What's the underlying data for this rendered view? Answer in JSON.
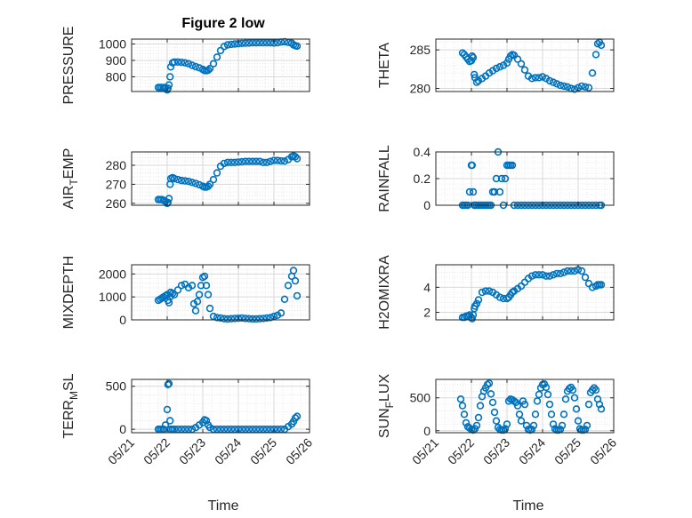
{
  "figure": {
    "title": "Figure 2 low",
    "xlabel": "Time"
  },
  "colors": {
    "marker": "#0072BD",
    "axis": "#262626",
    "grid_major": "#d9d9d9",
    "grid_minor": "#e3e3e3"
  },
  "chart_data": [
    {
      "type": "scatter",
      "marker": "circle-open",
      "grid": true,
      "ylabel": "PRESSURE",
      "xlim": [
        1,
        6
      ],
      "ylim": [
        710,
        1030
      ],
      "yticks": [
        800,
        900,
        1000
      ],
      "x": [
        1.75,
        1.8,
        1.85,
        1.9,
        1.95,
        2,
        2.02,
        2.05,
        2.08,
        2.1,
        2.15,
        2.2,
        2.3,
        2.4,
        2.5,
        2.6,
        2.7,
        2.8,
        2.9,
        3,
        3.05,
        3.1,
        3.15,
        3.2,
        3.3,
        3.4,
        3.5,
        3.6,
        3.7,
        3.8,
        3.9,
        4,
        4.1,
        4.2,
        4.3,
        4.4,
        4.5,
        4.6,
        4.7,
        4.8,
        4.9,
        5,
        5.1,
        5.2,
        5.3,
        5.4,
        5.5,
        5.55,
        5.6,
        5.65
      ],
      "y": [
        735,
        735,
        735,
        735,
        733,
        720,
        730,
        750,
        800,
        860,
        885,
        890,
        890,
        888,
        885,
        880,
        870,
        862,
        855,
        845,
        838,
        837,
        840,
        850,
        880,
        920,
        960,
        985,
        995,
        998,
        1000,
        1002,
        1004,
        1005,
        1006,
        1007,
        1007,
        1008,
        1008,
        1008,
        1007,
        1006,
        1008,
        1012,
        1014,
        1010,
        1005,
        995,
        990,
        987
      ]
    },
    {
      "type": "scatter",
      "marker": "circle-open",
      "grid": true,
      "ylabel": "THETA",
      "xlim": [
        1,
        6
      ],
      "ylim": [
        279.6,
        286.4
      ],
      "yticks": [
        280,
        285
      ],
      "x": [
        1.75,
        1.8,
        1.85,
        1.9,
        1.95,
        2,
        2.02,
        2.05,
        2.08,
        2.1,
        2.15,
        2.2,
        2.3,
        2.4,
        2.5,
        2.6,
        2.7,
        2.8,
        2.9,
        3,
        3.05,
        3.1,
        3.15,
        3.2,
        3.3,
        3.4,
        3.5,
        3.6,
        3.7,
        3.8,
        3.9,
        4,
        4.1,
        4.2,
        4.3,
        4.4,
        4.5,
        4.6,
        4.7,
        4.8,
        4.9,
        5,
        5.1,
        5.2,
        5.3,
        5.4,
        5.5,
        5.55,
        5.6,
        5.65
      ],
      "y": [
        284.6,
        284.4,
        284.1,
        283.8,
        283.5,
        283.6,
        284.2,
        284,
        281.8,
        281.4,
        280.8,
        281,
        281.3,
        281.6,
        282,
        282.3,
        282.6,
        282.8,
        283,
        283.3,
        283.8,
        284.2,
        284.4,
        284.3,
        283.8,
        283.2,
        282.4,
        281.6,
        281.3,
        281.4,
        281.4,
        281.5,
        281.3,
        281,
        280.8,
        280.6,
        280.4,
        280.3,
        280.2,
        280,
        279.9,
        280.1,
        280.3,
        280.2,
        280.1,
        282,
        284.4,
        285.8,
        286.0,
        285.6
      ]
    },
    {
      "type": "scatter",
      "marker": "circle-open",
      "grid": true,
      "ylabel": "AIR_TEMP",
      "xlim": [
        1,
        6
      ],
      "ylim": [
        259,
        287
      ],
      "yticks": [
        260,
        270,
        280
      ],
      "x": [
        1.75,
        1.8,
        1.85,
        1.9,
        1.95,
        2,
        2.02,
        2.05,
        2.08,
        2.1,
        2.15,
        2.2,
        2.3,
        2.4,
        2.5,
        2.6,
        2.7,
        2.8,
        2.9,
        3,
        3.05,
        3.1,
        3.15,
        3.2,
        3.3,
        3.4,
        3.5,
        3.6,
        3.7,
        3.8,
        3.9,
        4,
        4.1,
        4.2,
        4.3,
        4.4,
        4.5,
        4.6,
        4.7,
        4.8,
        4.9,
        5,
        5.1,
        5.2,
        5.3,
        5.4,
        5.5,
        5.55,
        5.6,
        5.65
      ],
      "y": [
        262,
        262,
        262,
        261.5,
        261,
        260,
        260.5,
        262.5,
        270,
        273,
        273.5,
        273,
        272.5,
        272,
        271.8,
        271.5,
        271,
        270.5,
        269.8,
        269,
        268.5,
        268.5,
        269,
        270,
        272.5,
        276,
        279.5,
        281,
        281.5,
        281.5,
        281.5,
        281.7,
        281.8,
        282,
        282,
        282,
        282,
        282,
        281.5,
        281.5,
        282,
        282.5,
        282.5,
        282.3,
        282.2,
        283,
        284.5,
        285,
        284.5,
        283.5
      ]
    },
    {
      "type": "scatter",
      "marker": "circle-open",
      "grid": true,
      "ylabel": "RAINFALL",
      "xlim": [
        1,
        6
      ],
      "ylim": [
        0,
        0.4
      ],
      "yticks": [
        0,
        0.2,
        0.4
      ],
      "x": [
        1.75,
        1.8,
        1.85,
        1.9,
        1.95,
        2,
        2.02,
        2.05,
        2.08,
        2.1,
        2.15,
        2.2,
        2.25,
        2.3,
        2.35,
        2.4,
        2.45,
        2.5,
        2.55,
        2.6,
        2.65,
        2.7,
        2.75,
        2.8,
        2.85,
        2.9,
        2.95,
        3,
        3.05,
        3.1,
        3.15,
        3.2,
        3.3,
        3.4,
        3.5,
        3.6,
        3.7,
        3.8,
        3.9,
        4,
        4.1,
        4.2,
        4.3,
        4.4,
        4.5,
        4.6,
        4.7,
        4.8,
        4.9,
        5,
        5.1,
        5.2,
        5.3,
        5.4,
        5.5,
        5.6,
        5.65
      ],
      "y": [
        0,
        0,
        0,
        0,
        0.1,
        0.3,
        0.3,
        0.1,
        0,
        0,
        0,
        0,
        0,
        0,
        0,
        0,
        0,
        0,
        0,
        0.1,
        0.1,
        0.2,
        0.4,
        0.1,
        0.2,
        0,
        0.2,
        0.3,
        0.3,
        0.3,
        0.3,
        0,
        0,
        0,
        0,
        0,
        0,
        0,
        0,
        0,
        0,
        0,
        0,
        0,
        0,
        0,
        0,
        0,
        0,
        0,
        0,
        0,
        0,
        0,
        0,
        0,
        0
      ]
    },
    {
      "type": "scatter",
      "marker": "circle-open",
      "grid": true,
      "ylabel": "MIXDEPTH",
      "xlim": [
        1,
        6
      ],
      "ylim": [
        0,
        2400
      ],
      "yticks": [
        0,
        1000,
        2000
      ],
      "x": [
        1.75,
        1.8,
        1.85,
        1.9,
        1.95,
        2,
        2.02,
        2.05,
        2.08,
        2.1,
        2.15,
        2.2,
        2.3,
        2.4,
        2.5,
        2.6,
        2.7,
        2.75,
        2.8,
        2.85,
        2.9,
        2.95,
        3,
        3.05,
        3.1,
        3.15,
        3.2,
        3.3,
        3.4,
        3.5,
        3.6,
        3.7,
        3.8,
        3.9,
        4,
        4.1,
        4.2,
        4.3,
        4.4,
        4.5,
        4.6,
        4.7,
        4.8,
        4.9,
        5,
        5.1,
        5.2,
        5.3,
        5.4,
        5.5,
        5.55,
        5.6,
        5.65
      ],
      "y": [
        850,
        900,
        950,
        1000,
        1050,
        1100,
        850,
        750,
        1000,
        1200,
        1150,
        1100,
        1300,
        1500,
        1550,
        1400,
        1500,
        700,
        400,
        800,
        1100,
        1500,
        1850,
        1900,
        1500,
        1100,
        500,
        150,
        100,
        80,
        50,
        40,
        50,
        60,
        70,
        80,
        60,
        50,
        40,
        40,
        50,
        60,
        80,
        100,
        150,
        200,
        300,
        900,
        1500,
        1900,
        2150,
        1700,
        1050
      ]
    },
    {
      "type": "scatter",
      "marker": "circle-open",
      "grid": true,
      "ylabel": "H2OMIXRA",
      "xlim": [
        1,
        6
      ],
      "ylim": [
        1.4,
        5.8
      ],
      "yticks": [
        2,
        4
      ],
      "x": [
        1.75,
        1.8,
        1.85,
        1.9,
        1.95,
        2,
        2.02,
        2.05,
        2.08,
        2.1,
        2.15,
        2.2,
        2.3,
        2.4,
        2.5,
        2.6,
        2.7,
        2.8,
        2.9,
        3,
        3.05,
        3.1,
        3.15,
        3.2,
        3.3,
        3.4,
        3.5,
        3.6,
        3.7,
        3.8,
        3.9,
        4,
        4.1,
        4.2,
        4.3,
        4.4,
        4.5,
        4.6,
        4.7,
        4.8,
        4.9,
        5,
        5.1,
        5.2,
        5.3,
        5.4,
        5.5,
        5.55,
        5.6,
        5.65
      ],
      "y": [
        1.6,
        1.6,
        1.7,
        1.7,
        1.8,
        1.6,
        1.5,
        1.8,
        2.3,
        2.5,
        2.7,
        3.0,
        3.6,
        3.7,
        3.7,
        3.6,
        3.4,
        3.2,
        3.1,
        3.1,
        3.2,
        3.4,
        3.6,
        3.7,
        3.9,
        4.1,
        4.4,
        4.7,
        4.9,
        5.0,
        5.0,
        5.0,
        4.9,
        4.9,
        5.0,
        5.1,
        5.1,
        5.2,
        5.3,
        5.3,
        5.3,
        5.4,
        5.3,
        4.8,
        4.3,
        4.0,
        4.1,
        4.2,
        4.2,
        4.2
      ]
    },
    {
      "type": "scatter",
      "marker": "circle-open",
      "grid": true,
      "ylabel": "TERR_MSL",
      "xlim": [
        1,
        6
      ],
      "ylim": [
        -40,
        580
      ],
      "yticks": [
        0,
        500
      ],
      "x": [
        1.75,
        1.8,
        1.85,
        1.9,
        1.95,
        2,
        2.02,
        2.05,
        2.08,
        2.1,
        2.15,
        2.2,
        2.3,
        2.4,
        2.5,
        2.6,
        2.7,
        2.8,
        2.9,
        3,
        3.05,
        3.1,
        3.15,
        3.2,
        3.3,
        3.4,
        3.5,
        3.6,
        3.7,
        3.8,
        3.9,
        4,
        4.1,
        4.2,
        4.3,
        4.4,
        4.5,
        4.6,
        4.7,
        4.8,
        4.9,
        5,
        5.1,
        5.2,
        5.3,
        5.4,
        5.5,
        5.55,
        5.6,
        5.65
      ],
      "y": [
        0,
        0,
        0,
        0,
        50,
        230,
        520,
        530,
        100,
        0,
        0,
        0,
        0,
        0,
        0,
        0,
        0,
        20,
        50,
        80,
        110,
        100,
        50,
        20,
        0,
        0,
        0,
        0,
        0,
        0,
        0,
        0,
        0,
        0,
        0,
        0,
        0,
        0,
        0,
        0,
        0,
        0,
        0,
        0,
        0,
        30,
        60,
        90,
        130,
        150
      ]
    },
    {
      "type": "scatter",
      "marker": "circle-open",
      "grid": true,
      "ylabel": "SUN_FLUX",
      "xlim": [
        1,
        6
      ],
      "ylim": [
        -30,
        780
      ],
      "yticks": [
        0,
        500
      ],
      "x": [
        1.7,
        1.75,
        1.8,
        1.85,
        1.9,
        1.95,
        2,
        2.05,
        2.1,
        2.15,
        2.2,
        2.25,
        2.3,
        2.35,
        2.4,
        2.45,
        2.5,
        2.55,
        2.6,
        2.65,
        2.7,
        2.75,
        2.8,
        2.85,
        2.9,
        2.95,
        3,
        3.05,
        3.1,
        3.15,
        3.2,
        3.25,
        3.3,
        3.35,
        3.4,
        3.45,
        3.5,
        3.55,
        3.6,
        3.65,
        3.7,
        3.75,
        3.8,
        3.85,
        3.9,
        3.95,
        4,
        4.05,
        4.1,
        4.15,
        4.2,
        4.25,
        4.3,
        4.35,
        4.4,
        4.45,
        4.5,
        4.55,
        4.6,
        4.65,
        4.7,
        4.75,
        4.8,
        4.85,
        4.9,
        4.95,
        5,
        5.05,
        5.1,
        5.15,
        5.2,
        5.25,
        5.3,
        5.35,
        5.4,
        5.45,
        5.5,
        5.55,
        5.6,
        5.65
      ],
      "y": [
        480,
        380,
        250,
        120,
        60,
        40,
        20,
        10,
        30,
        80,
        200,
        380,
        520,
        600,
        650,
        700,
        720,
        560,
        430,
        280,
        150,
        50,
        20,
        10,
        10,
        30,
        100,
        450,
        480,
        470,
        450,
        430,
        380,
        250,
        150,
        450,
        400,
        80,
        20,
        10,
        20,
        80,
        250,
        450,
        550,
        650,
        700,
        710,
        660,
        550,
        400,
        250,
        100,
        30,
        10,
        10,
        20,
        80,
        250,
        480,
        600,
        640,
        660,
        620,
        500,
        330,
        150,
        30,
        10,
        10,
        20,
        80,
        400,
        580,
        620,
        650,
        620,
        480,
        400,
        330
      ]
    }
  ],
  "x_axis": {
    "range": [
      "05/21",
      "05/26"
    ],
    "ticks": [
      {
        "value": 1,
        "label": "05/21"
      },
      {
        "value": 2,
        "label": "05/22"
      },
      {
        "value": 3,
        "label": "05/23"
      },
      {
        "value": 4,
        "label": "05/24"
      },
      {
        "value": 5,
        "label": "05/25"
      },
      {
        "value": 6,
        "label": "05/26"
      }
    ]
  }
}
